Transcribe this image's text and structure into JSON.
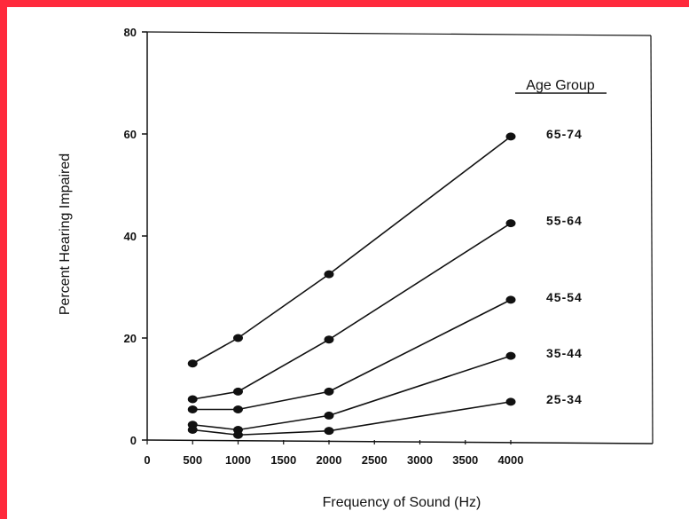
{
  "chart_data": {
    "type": "line",
    "xlabel": "Frequency of Sound (Hz)",
    "ylabel": "Percent Hearing Impaired",
    "legend_title": "Age Group",
    "xlim": [
      0,
      4500
    ],
    "ylim": [
      0,
      80
    ],
    "x_ticks": [
      "0",
      "500",
      "1000",
      "1500",
      "2000",
      "2500",
      "3000",
      "3500",
      "4000"
    ],
    "y_ticks": [
      "0",
      "20",
      "40",
      "60",
      "80"
    ],
    "x": [
      500,
      1000,
      2000,
      4000
    ],
    "series": [
      {
        "name": "65-74",
        "values": [
          15,
          20,
          32.5,
          59.5
        ]
      },
      {
        "name": "55-64",
        "values": [
          8,
          9.5,
          19.7,
          42.5
        ]
      },
      {
        "name": "45-54",
        "values": [
          6,
          6,
          9.5,
          27.5
        ]
      },
      {
        "name": "35-44",
        "values": [
          3,
          2,
          4.8,
          16.5
        ]
      },
      {
        "name": "25-34",
        "values": [
          2,
          1,
          1.8,
          7.5
        ]
      }
    ],
    "grid": false,
    "legend": "right"
  },
  "colors": {
    "line": "#111111",
    "marker": "#111111",
    "border": "#ff2a3c"
  }
}
